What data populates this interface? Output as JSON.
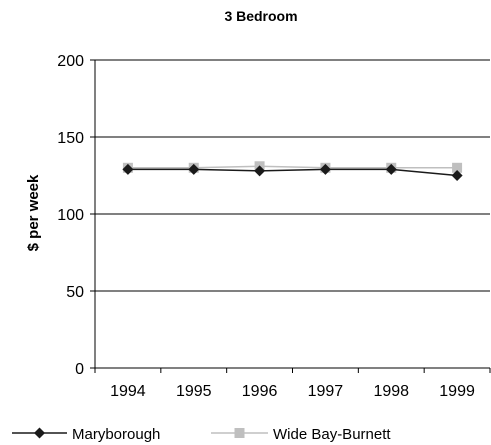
{
  "chart_data": {
    "type": "line",
    "title": "3 Bedroom",
    "xlabel": "",
    "ylabel": "$ per week",
    "x": [
      "1994",
      "1995",
      "1996",
      "1997",
      "1998",
      "1999"
    ],
    "ylim": [
      0,
      200
    ],
    "yticks": [
      0,
      50,
      100,
      150,
      200
    ],
    "grid": true,
    "legend_position": "bottom",
    "series": [
      {
        "name": "Maryborough",
        "values": [
          129,
          129,
          128,
          129,
          129,
          125
        ],
        "color": "#1a1a1a",
        "marker": "diamond"
      },
      {
        "name": "Wide Bay-Burnett",
        "values": [
          130,
          130,
          131,
          130,
          130,
          130
        ],
        "color": "#bfbfbf",
        "marker": "square"
      }
    ]
  }
}
